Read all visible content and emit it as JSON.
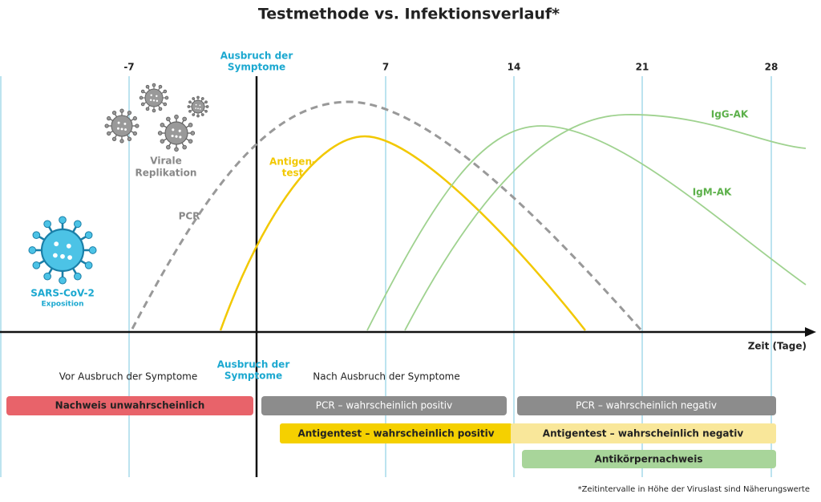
{
  "title": "Testmethode vs. Infektionsverlauf*",
  "timeline": {
    "ticks": [
      "-7",
      "7",
      "14",
      "21",
      "28"
    ],
    "onset": [
      "Ausbruch der",
      "Symptome"
    ],
    "axis_label": "Zeit (Tage)"
  },
  "labels": {
    "replication": [
      "Virale",
      "Replikation"
    ],
    "pcr": "PCR",
    "antigen": [
      "Antigen-",
      "test"
    ],
    "igg": "IgG-AK",
    "igm": "IgM-AK",
    "virus": "SARS-CoV-2",
    "exposition": "Exposition"
  },
  "phases": {
    "onset": [
      "Ausbruch der",
      "Symptome"
    ],
    "before": "Vor Ausbruch der Symptome",
    "after": "Nach Ausbruch der Symptome"
  },
  "bars": [
    "Nachweis unwahrscheinlich",
    "PCR – wahrscheinlich positiv",
    "PCR – wahrscheinlich negativ",
    "Antigentest – wahrscheinlich positiv",
    "Antigentest – wahrscheinlich negativ",
    "Antikörpernachweis"
  ],
  "footnote": "*Zeitintervalle in Höhe der Viruslast sind Näherungswerte"
}
